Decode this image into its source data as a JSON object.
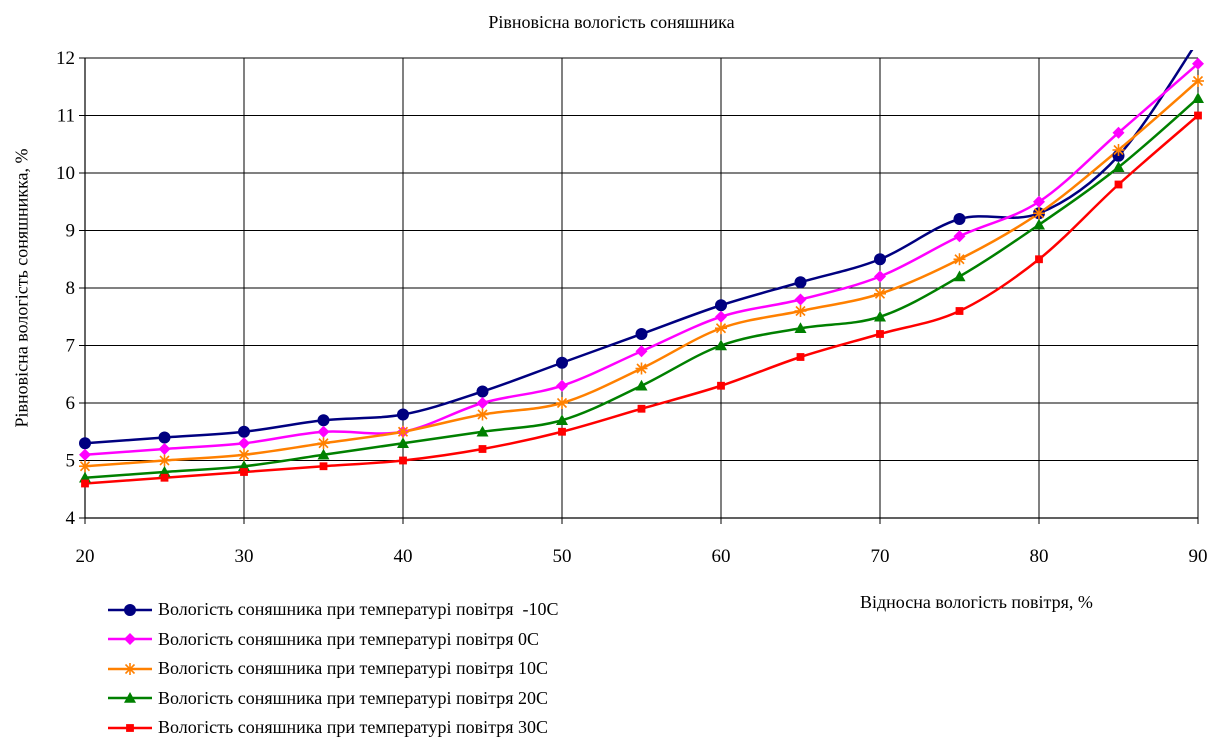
{
  "chart_data": {
    "type": "line",
    "title": "Рівновісна вологість соняшника",
    "xlabel": "Відносна вологість повітря, %",
    "ylabel": "Рівновісна вологість соняшникка, %",
    "x": [
      20,
      25,
      30,
      35,
      40,
      45,
      50,
      55,
      60,
      65,
      70,
      75,
      80,
      85,
      90
    ],
    "xlim": [
      20,
      90
    ],
    "ylim": [
      4,
      12
    ],
    "xticks": [
      20,
      30,
      40,
      50,
      60,
      70,
      80,
      90
    ],
    "yticks": [
      4,
      5,
      6,
      7,
      8,
      9,
      10,
      11,
      12
    ],
    "grid": true,
    "legend_position": "bottom-left",
    "series": [
      {
        "name": "Вологість соняшника при температурі повітря  -10С",
        "color": "#000080",
        "marker": "circle",
        "values": [
          5.3,
          5.4,
          5.5,
          5.7,
          5.8,
          6.2,
          6.7,
          7.2,
          7.7,
          8.1,
          8.5,
          9.2,
          9.3,
          10.3,
          12.3
        ]
      },
      {
        "name": "Вологість соняшника при температурі повітря 0С",
        "color": "#FF00FF",
        "marker": "diamond",
        "values": [
          5.1,
          5.2,
          5.3,
          5.5,
          5.5,
          6.0,
          6.3,
          6.9,
          7.5,
          7.8,
          8.2,
          8.9,
          9.5,
          10.7,
          11.9
        ]
      },
      {
        "name": "Вологість соняшника при температурі повітря 10С",
        "color": "#FF8000",
        "marker": "asterisk",
        "values": [
          4.9,
          5.0,
          5.1,
          5.3,
          5.5,
          5.8,
          6.0,
          6.6,
          7.3,
          7.6,
          7.9,
          8.5,
          9.3,
          10.4,
          11.6
        ]
      },
      {
        "name": "Вологість соняшника при температурі повітря 20С",
        "color": "#008000",
        "marker": "triangle",
        "values": [
          4.7,
          4.8,
          4.9,
          5.1,
          5.3,
          5.5,
          5.7,
          6.3,
          7.0,
          7.3,
          7.5,
          8.2,
          9.1,
          10.1,
          11.3
        ]
      },
      {
        "name": "Вологість соняшника при температурі повітря 30С",
        "color": "#FF0000",
        "marker": "square",
        "values": [
          4.6,
          4.7,
          4.8,
          4.9,
          5.0,
          5.2,
          5.5,
          5.9,
          6.3,
          6.8,
          7.2,
          7.6,
          8.5,
          9.8,
          11.0
        ]
      }
    ]
  }
}
